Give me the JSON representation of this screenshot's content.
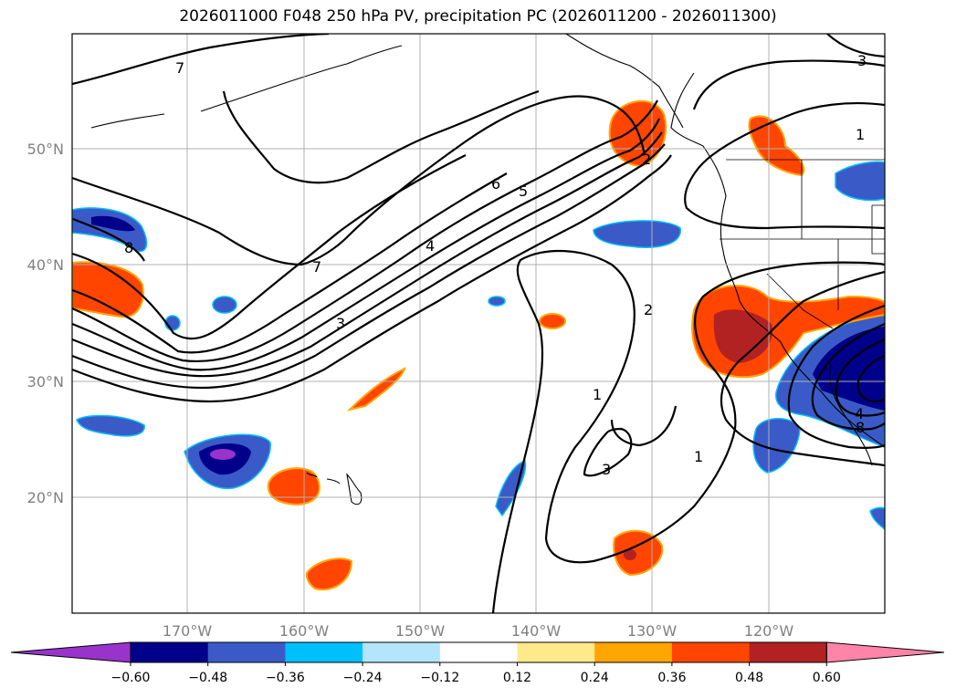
{
  "title": "2026011000 F048 250 hPa PV, precipitation PC (2026011200 - 2026011300)",
  "latitude_labels": [
    "50°N",
    "40°N",
    "30°N",
    "20°N"
  ],
  "longitude_labels": [
    "170°W",
    "160°W",
    "150°W",
    "140°W",
    "130°W",
    "120°W"
  ],
  "colorbar": {
    "ticks": [
      "−0.60",
      "−0.48",
      "−0.36",
      "−0.24",
      "−0.12",
      "0.12",
      "0.24",
      "0.36",
      "0.48",
      "0.60"
    ],
    "colors": [
      "#9933cc",
      "#00008b",
      "#3a5bc7",
      "#00bfff",
      "#b3e5fc",
      "#ffffff",
      "#ffe98a",
      "#ffa500",
      "#ff4500",
      "#b22222",
      "#ff85a8"
    ]
  },
  "contour_labels": [
    "7",
    "6",
    "5",
    "4",
    "3",
    "2",
    "1",
    "8"
  ],
  "colors": {
    "neg_strong": "#9933cc",
    "neg_dark": "#00008b",
    "neg_mid": "#3a5bc7",
    "neg_light": "#00bfff",
    "neg_pale": "#b3e5fc",
    "pos_pale": "#ffe98a",
    "pos_light": "#ffa500",
    "pos_mid": "#ff4500",
    "pos_dark": "#b22222",
    "pos_strong": "#ff85a8"
  }
}
